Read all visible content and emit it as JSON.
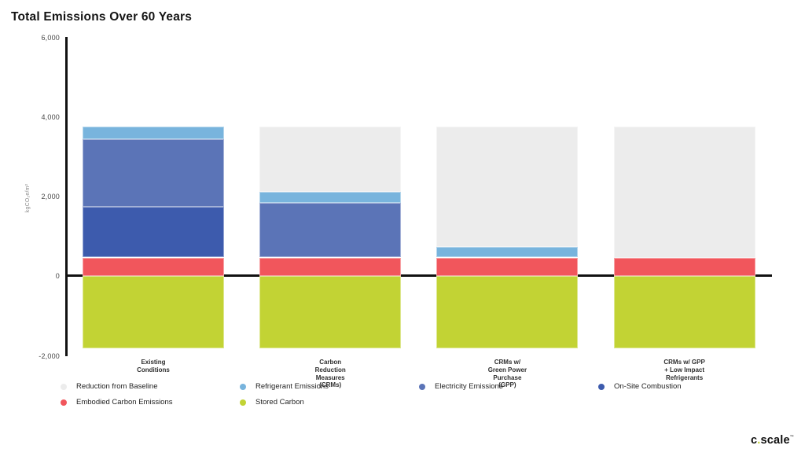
{
  "chart_data": {
    "type": "bar",
    "stacked": true,
    "title": "Total Emissions Over 60 Years",
    "y_unit_label": "kgCO₂e/m²",
    "xlabel": "",
    "ylabel": "kgCO₂e/m²",
    "ylim": [
      -2000,
      6000
    ],
    "grid": false,
    "bar_total_positive": 3740,
    "y_ticks": [
      {
        "value": 6000,
        "label": "6,000"
      },
      {
        "value": 4000,
        "label": "4,000"
      },
      {
        "value": 2000,
        "label": "2,000"
      },
      {
        "value": 0,
        "label": "0"
      },
      {
        "value": -2000,
        "label": "-2,000"
      }
    ],
    "categories": [
      {
        "lines": [
          "Existing",
          "Conditions"
        ]
      },
      {
        "lines": [
          "Carbon",
          "Reduction",
          "Measures",
          "(CRMs)"
        ]
      },
      {
        "lines": [
          "CRMs w/",
          "Green Power",
          "Purchase",
          "(GPP)"
        ]
      },
      {
        "lines": [
          "CRMs w/ GPP",
          "+ Low Impact",
          "Refrigerants"
        ]
      }
    ],
    "series": [
      {
        "name": "Reduction from Baseline",
        "color": "#ECECEC",
        "values": [
          0,
          1640,
          3010,
          3290
        ]
      },
      {
        "name": "Refrigerant Emissions",
        "color": "#78B4DD",
        "values": [
          300,
          270,
          270,
          0
        ]
      },
      {
        "name": "Electricity Emissions",
        "color": "#5B74B7",
        "values": [
          1710,
          1370,
          0,
          0
        ]
      },
      {
        "name": "On-Site Combustion",
        "color": "#3D5BAD",
        "values": [
          1270,
          0,
          0,
          0
        ]
      },
      {
        "name": "Embodied Carbon Emissions",
        "color": "#F1565C",
        "values": [
          460,
          460,
          460,
          450
        ]
      },
      {
        "name": "Stored Carbon",
        "color": "#C2D334",
        "values": [
          -1830,
          -1830,
          -1830,
          -1830
        ]
      }
    ],
    "legend": {
      "position": "bottom-left",
      "rows": [
        [
          "Reduction from Baseline",
          "Refrigerant Emissions",
          "Electricity Emissions",
          "On-Site Combustion"
        ],
        [
          "Embodied Carbon Emissions",
          "Stored Carbon"
        ]
      ]
    }
  },
  "logo": {
    "part1": "c",
    "dot": ".",
    "part2": "scale",
    "mark": "™"
  }
}
